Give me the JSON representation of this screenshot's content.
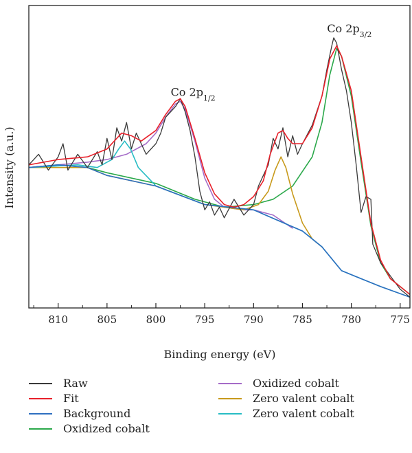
{
  "chart_data": {
    "type": "line",
    "title": "",
    "xlabel": "Binding energy (eV)",
    "ylabel": "Intensity (a.u.)",
    "xlim": [
      813,
      774
    ],
    "ylim": [
      0,
      1
    ],
    "x_reversed": true,
    "x_ticks": [
      810,
      805,
      800,
      795,
      790,
      785,
      780,
      775
    ],
    "y_ticks_shown": false,
    "grid": false,
    "legend_position": "bottom",
    "annotations": [
      {
        "text_main": "Co 2p",
        "text_sub": "1/2",
        "x": 797.5,
        "y": 0.76
      },
      {
        "text_main": "Co 2p",
        "text_sub": "3/2",
        "x": 781.5,
        "y": 1.0
      }
    ],
    "series": [
      {
        "name": "Raw",
        "color": "#3a3a3a",
        "points": [
          [
            813,
            0.52
          ],
          [
            812,
            0.56
          ],
          [
            811,
            0.5
          ],
          [
            810,
            0.55
          ],
          [
            809.5,
            0.6
          ],
          [
            809,
            0.5
          ],
          [
            808,
            0.56
          ],
          [
            807,
            0.51
          ],
          [
            806,
            0.57
          ],
          [
            805.5,
            0.52
          ],
          [
            805,
            0.62
          ],
          [
            804.5,
            0.54
          ],
          [
            804,
            0.66
          ],
          [
            803.5,
            0.61
          ],
          [
            803,
            0.68
          ],
          [
            802.5,
            0.58
          ],
          [
            802,
            0.64
          ],
          [
            801,
            0.56
          ],
          [
            800,
            0.6
          ],
          [
            799.5,
            0.64
          ],
          [
            799,
            0.7
          ],
          [
            798,
            0.74
          ],
          [
            797.5,
            0.77
          ],
          [
            797,
            0.72
          ],
          [
            796.5,
            0.65
          ],
          [
            796,
            0.55
          ],
          [
            795.5,
            0.42
          ],
          [
            795,
            0.35
          ],
          [
            794.5,
            0.38
          ],
          [
            794,
            0.33
          ],
          [
            793.5,
            0.36
          ],
          [
            793,
            0.32
          ],
          [
            792,
            0.39
          ],
          [
            791,
            0.33
          ],
          [
            790,
            0.37
          ],
          [
            789.5,
            0.44
          ],
          [
            789,
            0.48
          ],
          [
            788.5,
            0.52
          ],
          [
            788,
            0.62
          ],
          [
            787.5,
            0.58
          ],
          [
            787,
            0.66
          ],
          [
            786.5,
            0.55
          ],
          [
            786,
            0.63
          ],
          [
            785.5,
            0.56
          ],
          [
            785,
            0.6
          ],
          [
            784,
            0.67
          ],
          [
            783,
            0.78
          ],
          [
            782.5,
            0.88
          ],
          [
            782,
            0.97
          ],
          [
            781.8,
            1.0
          ],
          [
            781.5,
            0.98
          ],
          [
            781,
            0.88
          ],
          [
            780.5,
            0.8
          ],
          [
            780,
            0.68
          ],
          [
            779.5,
            0.52
          ],
          [
            779,
            0.34
          ],
          [
            778.5,
            0.4
          ],
          [
            778,
            0.39
          ],
          [
            777.8,
            0.22
          ],
          [
            777,
            0.15
          ],
          [
            776,
            0.1
          ],
          [
            775,
            0.05
          ],
          [
            774,
            0.02
          ]
        ]
      },
      {
        "name": "Fit",
        "color": "#e8202a",
        "points": [
          [
            813,
            0.52
          ],
          [
            810,
            0.54
          ],
          [
            807,
            0.55
          ],
          [
            805,
            0.58
          ],
          [
            803.5,
            0.64
          ],
          [
            802.5,
            0.63
          ],
          [
            801.5,
            0.61
          ],
          [
            800,
            0.65
          ],
          [
            799,
            0.71
          ],
          [
            798,
            0.76
          ],
          [
            797.5,
            0.77
          ],
          [
            797,
            0.74
          ],
          [
            796,
            0.62
          ],
          [
            795,
            0.49
          ],
          [
            794,
            0.41
          ],
          [
            793,
            0.37
          ],
          [
            792,
            0.36
          ],
          [
            791,
            0.37
          ],
          [
            790,
            0.4
          ],
          [
            789,
            0.46
          ],
          [
            788.3,
            0.56
          ],
          [
            787.5,
            0.64
          ],
          [
            787,
            0.65
          ],
          [
            786.5,
            0.62
          ],
          [
            786,
            0.6
          ],
          [
            785,
            0.6
          ],
          [
            784,
            0.66
          ],
          [
            783,
            0.78
          ],
          [
            782.2,
            0.92
          ],
          [
            781.5,
            0.97
          ],
          [
            781,
            0.93
          ],
          [
            780,
            0.8
          ],
          [
            779,
            0.55
          ],
          [
            778,
            0.3
          ],
          [
            777,
            0.16
          ],
          [
            776,
            0.09
          ],
          [
            774,
            0.03
          ]
        ]
      },
      {
        "name": "Background",
        "color": "#2e6fc0",
        "points": [
          [
            813,
            0.51
          ],
          [
            810,
            0.52
          ],
          [
            807,
            0.51
          ],
          [
            805,
            0.48
          ],
          [
            800,
            0.44
          ],
          [
            795,
            0.37
          ],
          [
            790,
            0.35
          ],
          [
            785,
            0.27
          ],
          [
            783,
            0.21
          ],
          [
            781,
            0.12
          ],
          [
            779,
            0.09
          ],
          [
            777,
            0.06
          ],
          [
            774,
            0.02
          ]
        ]
      },
      {
        "name": "Oxidized cobalt",
        "color": "#2aa84a",
        "points": [
          [
            813,
            0.51
          ],
          [
            810,
            0.52
          ],
          [
            807,
            0.51
          ],
          [
            805,
            0.49
          ],
          [
            800,
            0.45
          ],
          [
            796,
            0.39
          ],
          [
            793,
            0.36
          ],
          [
            790,
            0.37
          ],
          [
            788,
            0.39
          ],
          [
            786,
            0.44
          ],
          [
            784,
            0.55
          ],
          [
            783,
            0.68
          ],
          [
            782.2,
            0.86
          ],
          [
            781.5,
            0.96
          ],
          [
            781,
            0.93
          ],
          [
            780,
            0.78
          ],
          [
            779,
            0.53
          ],
          [
            778,
            0.29
          ],
          [
            777,
            0.15
          ],
          [
            776,
            0.09
          ],
          [
            774,
            0.03
          ]
        ]
      },
      {
        "name": "Oxidized cobalt",
        "color": "#a56cc8",
        "points": [
          [
            813,
            0.51
          ],
          [
            810,
            0.52
          ],
          [
            807,
            0.53
          ],
          [
            805,
            0.54
          ],
          [
            803,
            0.56
          ],
          [
            801,
            0.6
          ],
          [
            800,
            0.64
          ],
          [
            799,
            0.7
          ],
          [
            798,
            0.75
          ],
          [
            797.5,
            0.76
          ],
          [
            797,
            0.73
          ],
          [
            796,
            0.61
          ],
          [
            795,
            0.47
          ],
          [
            794,
            0.39
          ],
          [
            793,
            0.36
          ],
          [
            791,
            0.35
          ],
          [
            790,
            0.35
          ],
          [
            788,
            0.33
          ],
          [
            786,
            0.28
          ]
        ]
      },
      {
        "name": "Zero valent cobalt",
        "color": "#c89a1c",
        "points": [
          [
            813,
            0.51
          ],
          [
            807,
            0.51
          ],
          [
            805,
            0.48
          ],
          [
            800,
            0.44
          ],
          [
            795,
            0.37
          ],
          [
            791,
            0.35
          ],
          [
            789.5,
            0.37
          ],
          [
            788.5,
            0.42
          ],
          [
            787.8,
            0.5
          ],
          [
            787.2,
            0.55
          ],
          [
            786.7,
            0.51
          ],
          [
            786,
            0.41
          ],
          [
            785,
            0.3
          ],
          [
            784,
            0.24
          ],
          [
            783,
            0.21
          ]
        ]
      },
      {
        "name": "Zero valent cobalt",
        "color": "#27bcc4",
        "points": [
          [
            813,
            0.51
          ],
          [
            808,
            0.52
          ],
          [
            806,
            0.51
          ],
          [
            804.5,
            0.54
          ],
          [
            803.8,
            0.58
          ],
          [
            803.2,
            0.61
          ],
          [
            802.6,
            0.58
          ],
          [
            801.8,
            0.51
          ],
          [
            800.5,
            0.46
          ],
          [
            800,
            0.44
          ],
          [
            795,
            0.37
          ],
          [
            790,
            0.35
          ],
          [
            785,
            0.27
          ],
          [
            783,
            0.21
          ],
          [
            781,
            0.12
          ],
          [
            779,
            0.09
          ],
          [
            777,
            0.06
          ],
          [
            774,
            0.02
          ]
        ]
      }
    ]
  }
}
